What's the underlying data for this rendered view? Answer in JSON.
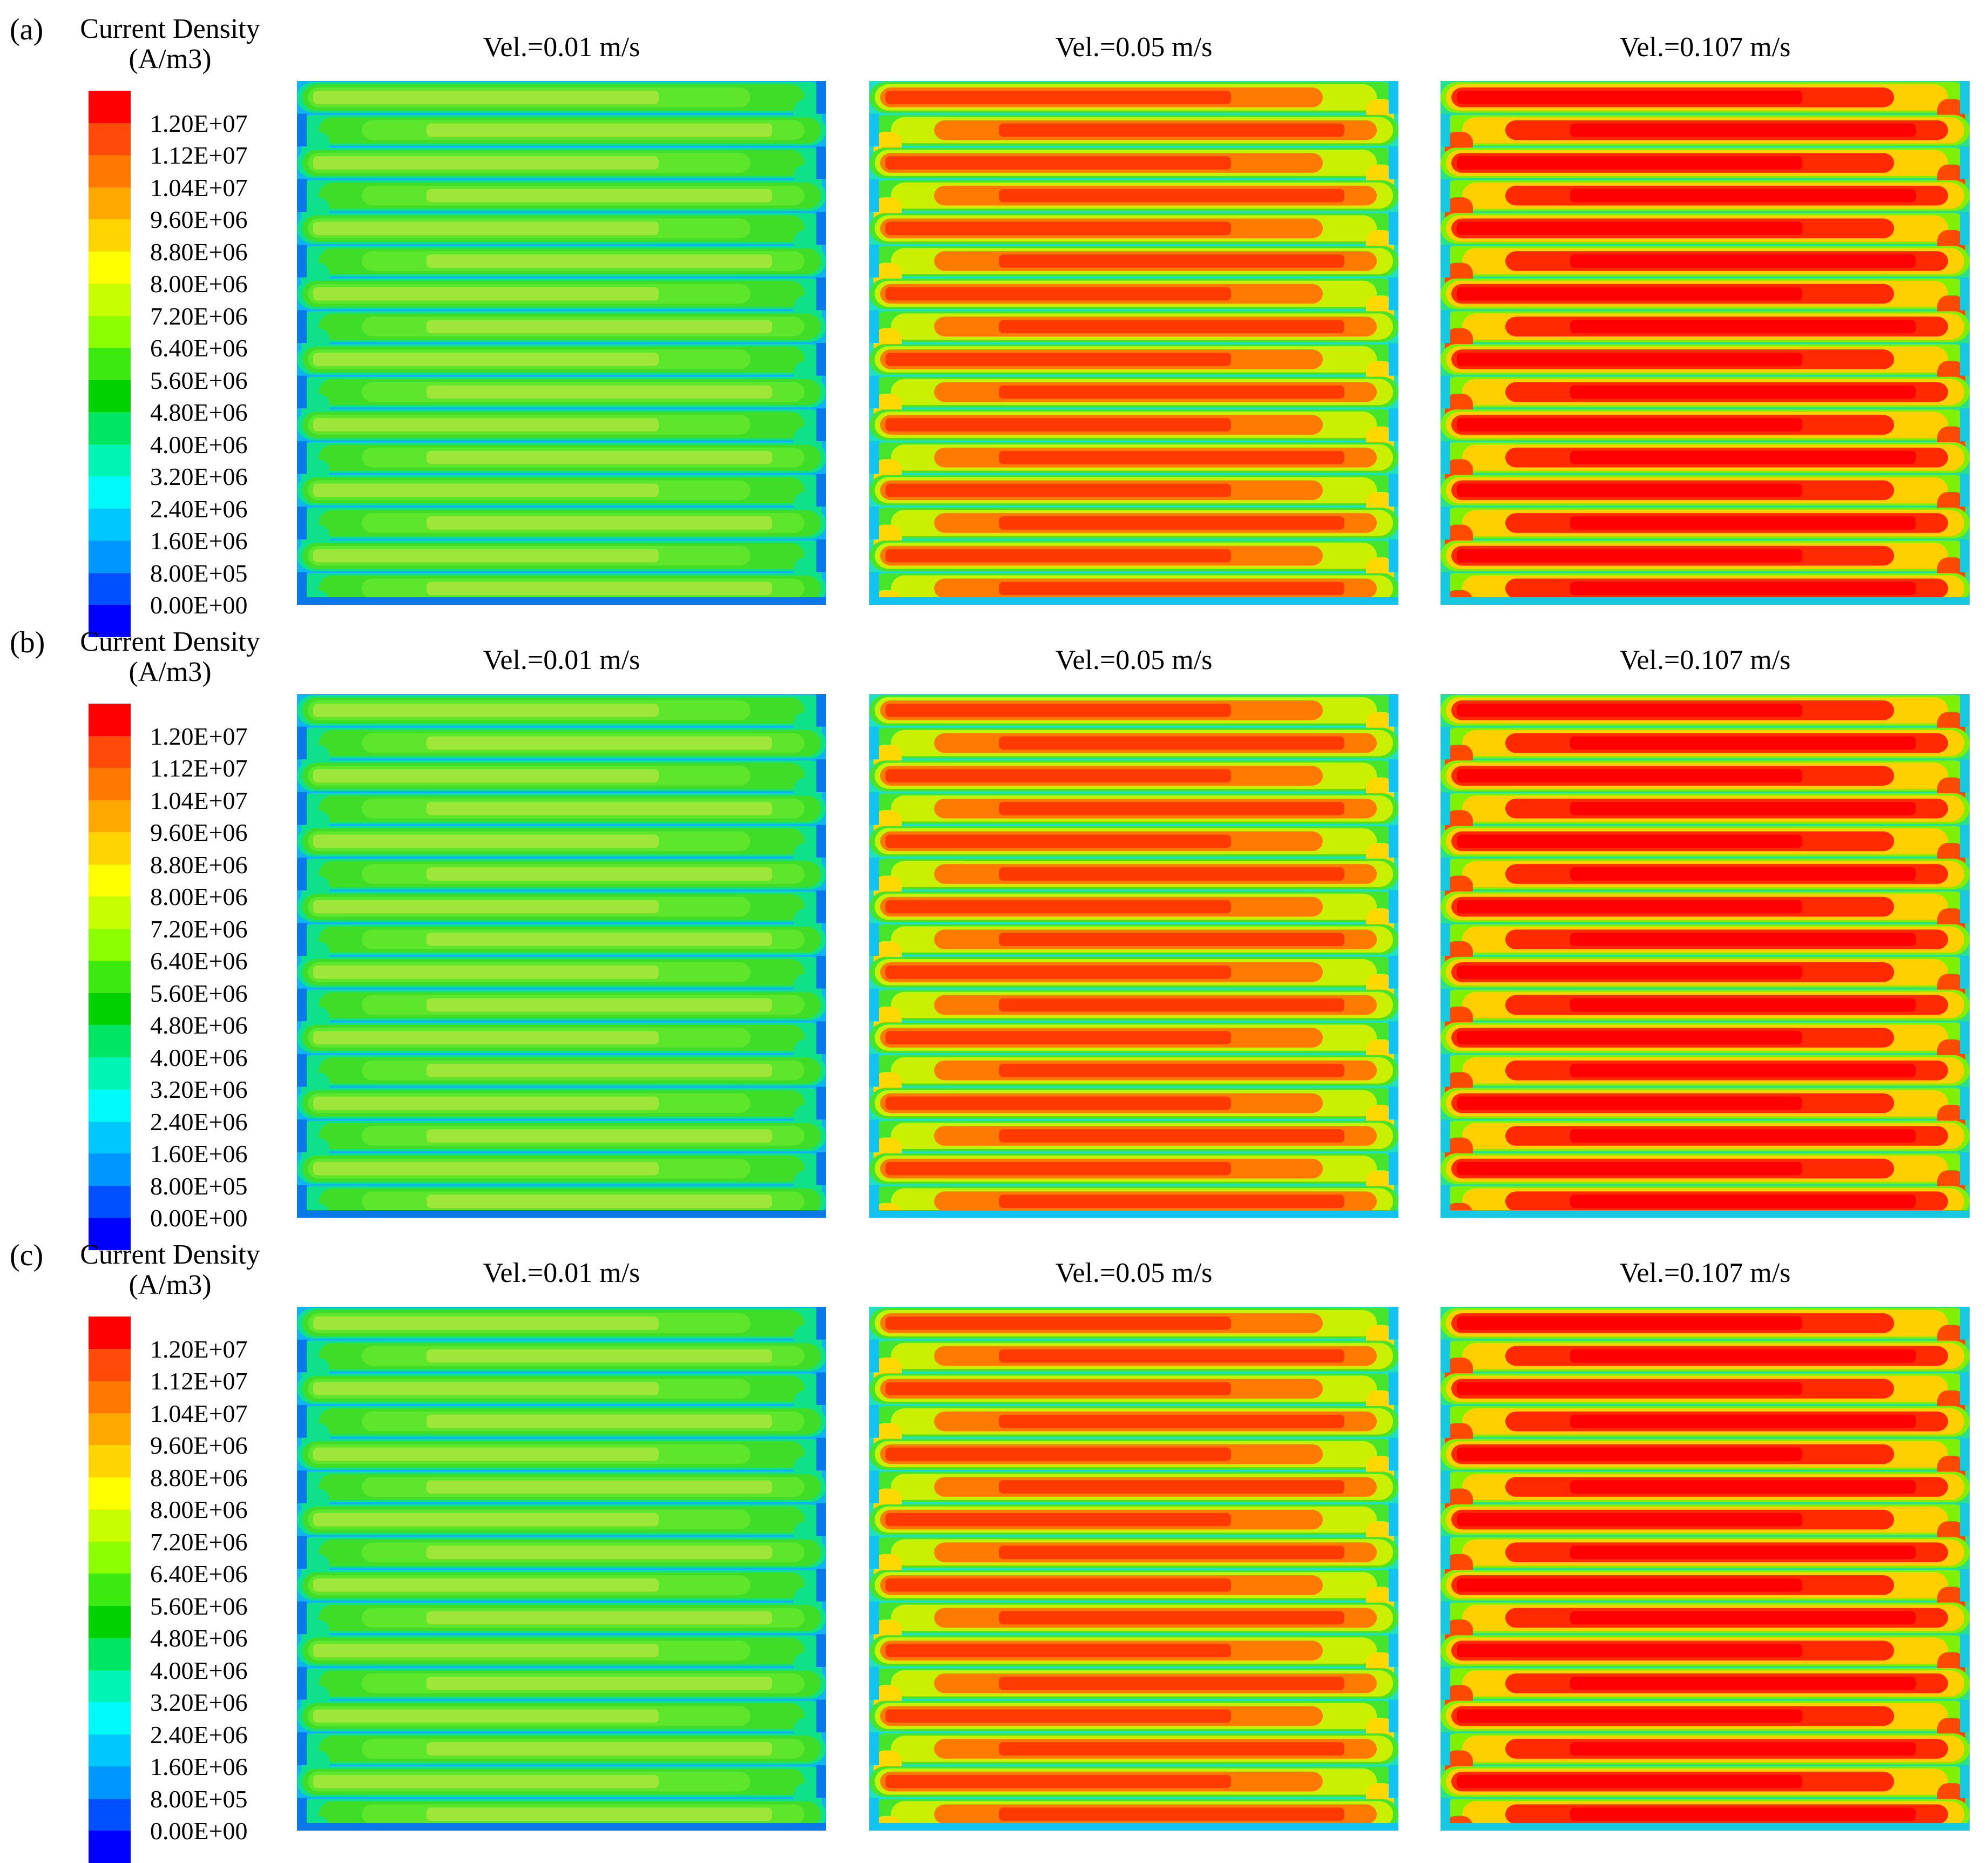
{
  "colorbar": {
    "title_line1": "Current Density",
    "title_line2": "(A/m3)",
    "ticks": [
      "1.20E+07",
      "1.12E+07",
      "1.04E+07",
      "9.60E+06",
      "8.80E+06",
      "8.00E+06",
      "7.20E+06",
      "6.40E+06",
      "5.60E+06",
      "4.80E+06",
      "4.00E+06",
      "3.20E+06",
      "2.40E+06",
      "1.60E+06",
      "8.00E+05",
      "0.00E+00"
    ],
    "colors": [
      "#ff0000",
      "#ff4a0a",
      "#ff7800",
      "#ffa800",
      "#ffd500",
      "#ffff00",
      "#c8ff00",
      "#8cff00",
      "#3cea12",
      "#00d200",
      "#00e664",
      "#00f5b4",
      "#00fafa",
      "#00c8ff",
      "#0096ff",
      "#0050ff",
      "#0000ff"
    ]
  },
  "rows": [
    {
      "label": "(a)",
      "panels": [
        {
          "title": "Vel.=0.01 m/s",
          "level": "low"
        },
        {
          "title": "Vel.=0.05 m/s",
          "level": "mid"
        },
        {
          "title": "Vel.=0.107 m/s",
          "level": "high"
        }
      ]
    },
    {
      "label": "(b)",
      "panels": [
        {
          "title": "Vel.=0.01 m/s",
          "level": "low"
        },
        {
          "title": "Vel.=0.05 m/s",
          "level": "mid"
        },
        {
          "title": "Vel.=0.107 m/s",
          "level": "high"
        }
      ]
    },
    {
      "label": "(c)",
      "panels": [
        {
          "title": "Vel.=0.01 m/s",
          "level": "low"
        },
        {
          "title": "Vel.=0.05 m/s",
          "level": "mid"
        },
        {
          "title": "Vel.=0.107 m/s",
          "level": "high"
        }
      ]
    }
  ]
}
